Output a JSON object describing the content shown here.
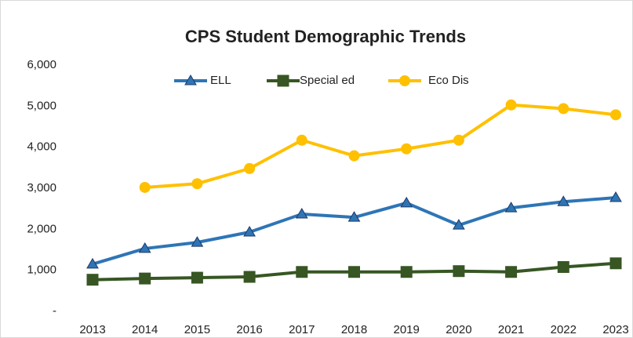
{
  "chart_data": {
    "type": "line",
    "title": "CPS Student Demographic Trends",
    "categories": [
      "2013",
      "2014",
      "2015",
      "2016",
      "2017",
      "2018",
      "2019",
      "2020",
      "2021",
      "2022",
      "2023"
    ],
    "series": [
      {
        "name": "ELL",
        "color": "#2e75b6",
        "marker": "triangle",
        "values": [
          1150,
          1530,
          1680,
          1930,
          2370,
          2290,
          2640,
          2100,
          2520,
          2670,
          2770
        ]
      },
      {
        "name": "Special ed",
        "color": "#375623",
        "marker": "square",
        "values": [
          770,
          800,
          820,
          840,
          960,
          960,
          960,
          980,
          960,
          1080,
          1170
        ]
      },
      {
        "name": "Eco Dis",
        "color": "#ffc000",
        "marker": "circle",
        "values": [
          null,
          3020,
          3110,
          3480,
          4170,
          3790,
          3960,
          4170,
          5030,
          4940,
          4790
        ]
      }
    ],
    "ylim": [
      0,
      6000
    ],
    "yticks": [
      {
        "value": 0,
        "label": "-"
      },
      {
        "value": 1000,
        "label": "1,000"
      },
      {
        "value": 2000,
        "label": "2,000"
      },
      {
        "value": 3000,
        "label": "3,000"
      },
      {
        "value": 4000,
        "label": "4,000"
      },
      {
        "value": 5000,
        "label": "5,000"
      },
      {
        "value": 6000,
        "label": "6,000"
      }
    ],
    "grid": false,
    "legend": "top"
  }
}
